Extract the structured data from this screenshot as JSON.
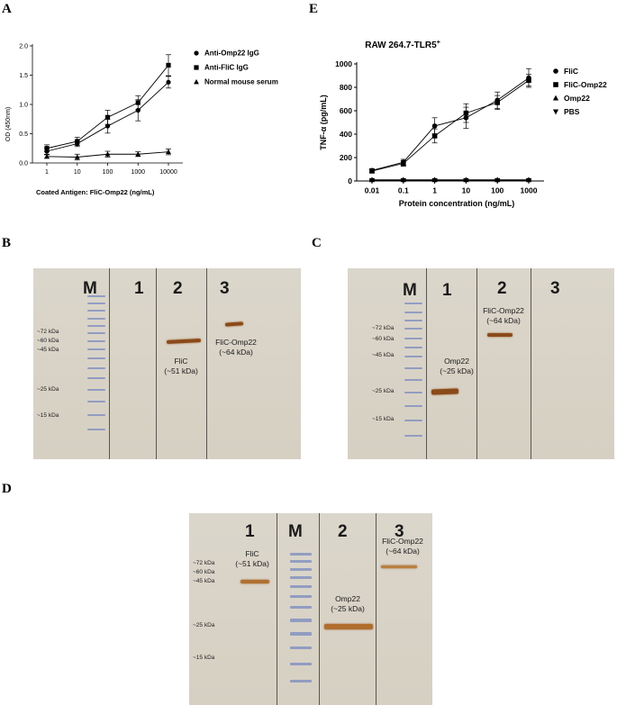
{
  "panel_letters": {
    "A": "A",
    "B": "B",
    "C": "C",
    "D": "D",
    "E": "E"
  },
  "chart_data": [
    {
      "type": "line",
      "panel": "A",
      "title": "",
      "xlabel": "Coated Antigen: FliC-Omp22 (ng/mL)",
      "ylabel": "OD (450nm)",
      "x_categories": [
        "1",
        "10",
        "100",
        "1000",
        "10000"
      ],
      "yticks": [
        "0.0",
        "0.5",
        "1.0",
        "1.5",
        "2.0"
      ],
      "ylim": [
        0,
        2.0
      ],
      "legend_position": "right",
      "series": [
        {
          "name": "Anti-Omp22 IgG",
          "marker": "circle",
          "values": [
            0.2,
            0.33,
            0.63,
            0.9,
            1.38
          ],
          "errors": [
            0.05,
            0.05,
            0.12,
            0.18,
            0.1
          ]
        },
        {
          "name": "Anti-FliC IgG",
          "marker": "square",
          "values": [
            0.25,
            0.37,
            0.78,
            1.03,
            1.67
          ],
          "errors": [
            0.06,
            0.07,
            0.12,
            0.12,
            0.18
          ]
        },
        {
          "name": "Normal mouse serum",
          "marker": "triangle",
          "values": [
            0.11,
            0.1,
            0.15,
            0.15,
            0.19
          ],
          "errors": [
            0.03,
            0.05,
            0.05,
            0.04,
            0.05
          ]
        }
      ]
    },
    {
      "type": "line",
      "panel": "E",
      "title": "RAW 264.7-TLR5",
      "title_sup": "+",
      "xlabel": "Protein concentration (ng/mL)",
      "ylabel": "TNF-α (pg/mL)",
      "x_categories": [
        "0.01",
        "0.1",
        "1",
        "10",
        "100",
        "1000"
      ],
      "yticks": [
        "0",
        "200",
        "400",
        "600",
        "800",
        "1000"
      ],
      "ylim": [
        0,
        1000
      ],
      "legend_position": "right",
      "series": [
        {
          "name": "FliC",
          "marker": "circle",
          "values": [
            90,
            160,
            470,
            540,
            690,
            880
          ],
          "errors": [
            15,
            25,
            70,
            90,
            70,
            80
          ]
        },
        {
          "name": "FliC-Omp22",
          "marker": "square",
          "values": [
            85,
            150,
            385,
            580,
            670,
            860
          ],
          "errors": [
            15,
            25,
            60,
            80,
            60,
            50
          ]
        },
        {
          "name": "Omp22",
          "marker": "triangle",
          "values": [
            10,
            10,
            10,
            10,
            10,
            10
          ],
          "errors": [
            5,
            5,
            5,
            5,
            5,
            5
          ]
        },
        {
          "name": "PBS",
          "marker": "triangle-down",
          "values": [
            5,
            5,
            5,
            5,
            5,
            5
          ],
          "errors": [
            3,
            3,
            3,
            3,
            3,
            3
          ]
        }
      ]
    }
  ],
  "blots": {
    "B": {
      "lanes": [
        "M",
        "1",
        "2",
        "3"
      ],
      "markers": [
        "~72 kDa",
        "~60 kDa",
        "~45 kDa",
        "~25 kDa",
        "~15 kDa"
      ],
      "labels": [
        {
          "name": "FliC",
          "size": "(~51 kDa)"
        },
        {
          "name": "FliC-Omp22",
          "size": "(~64 kDa)"
        }
      ]
    },
    "C": {
      "lanes": [
        "M",
        "1",
        "2",
        "3"
      ],
      "markers": [
        "~72 kDa",
        "~60 kDa",
        "~45 kDa",
        "~25 kDa",
        "~15 kDa"
      ],
      "labels": [
        {
          "name": "Omp22",
          "size": "(~25 kDa)"
        },
        {
          "name": "FliC-Omp22",
          "size": "(~64 kDa)"
        }
      ]
    },
    "D": {
      "lanes": [
        "1",
        "M",
        "2",
        "3"
      ],
      "markers": [
        "~72 kDa",
        "~60 kDa",
        "~45 kDa",
        "~25 kDa",
        "~15 kDa"
      ],
      "labels": [
        {
          "name": "FliC",
          "size": "(~51 kDa)"
        },
        {
          "name": "Omp22",
          "size": "(~25 kDa)"
        },
        {
          "name": "FliC-Omp22",
          "size": "(~64 kDa)"
        }
      ]
    }
  }
}
